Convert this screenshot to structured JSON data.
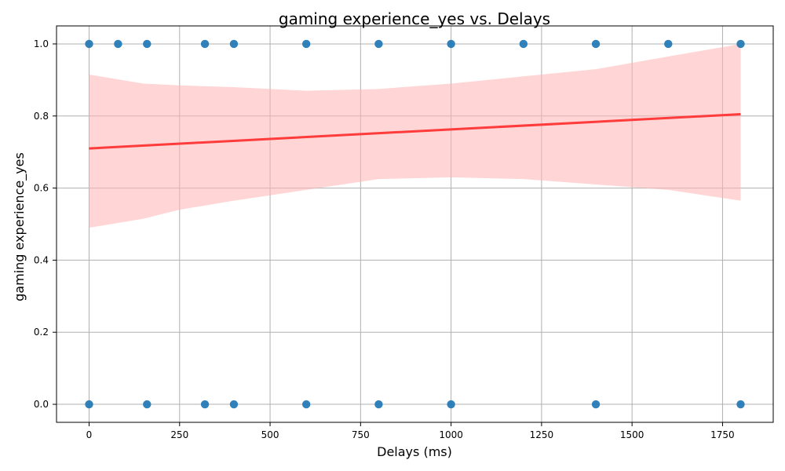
{
  "chart_data": {
    "type": "scatter",
    "title": "gaming experience_yes vs. Delays",
    "xlabel": "Delays (ms)",
    "ylabel": "gaming experience_yes",
    "xlim": [
      -90,
      1890
    ],
    "ylim": [
      -0.05,
      1.05
    ],
    "xticks": [
      0,
      250,
      500,
      750,
      1000,
      1250,
      1500,
      1750
    ],
    "yticks": [
      0.0,
      0.2,
      0.4,
      0.6,
      0.8,
      1.0
    ],
    "xtick_labels": [
      "0",
      "250",
      "500",
      "750",
      "1000",
      "1250",
      "1500",
      "1750"
    ],
    "ytick_labels": [
      "0.0",
      "0.2",
      "0.4",
      "0.6",
      "0.8",
      "1.0"
    ],
    "grid": true,
    "series": [
      {
        "kind": "points",
        "color": "#1f77b4",
        "points": [
          {
            "x": 0,
            "y": 1
          },
          {
            "x": 80,
            "y": 1
          },
          {
            "x": 160,
            "y": 1
          },
          {
            "x": 320,
            "y": 1
          },
          {
            "x": 400,
            "y": 1
          },
          {
            "x": 600,
            "y": 1
          },
          {
            "x": 800,
            "y": 1
          },
          {
            "x": 1000,
            "y": 1
          },
          {
            "x": 1200,
            "y": 1
          },
          {
            "x": 1400,
            "y": 1
          },
          {
            "x": 1600,
            "y": 1
          },
          {
            "x": 1800,
            "y": 1
          },
          {
            "x": 0,
            "y": 0
          },
          {
            "x": 160,
            "y": 0
          },
          {
            "x": 320,
            "y": 0
          },
          {
            "x": 400,
            "y": 0
          },
          {
            "x": 600,
            "y": 0
          },
          {
            "x": 800,
            "y": 0
          },
          {
            "x": 1000,
            "y": 0
          },
          {
            "x": 1400,
            "y": 0
          },
          {
            "x": 1800,
            "y": 0
          }
        ]
      },
      {
        "kind": "regression-line",
        "color": "#ff3b3b",
        "x": [
          0,
          1800
        ],
        "y": [
          0.71,
          0.805
        ]
      },
      {
        "kind": "confidence-band",
        "color": "#ffb3b3",
        "x": [
          0,
          150,
          250,
          400,
          600,
          800,
          1000,
          1200,
          1400,
          1600,
          1800
        ],
        "upper": [
          0.915,
          0.89,
          0.885,
          0.88,
          0.87,
          0.875,
          0.89,
          0.91,
          0.93,
          0.965,
          1.0
        ],
        "lower": [
          0.49,
          0.515,
          0.54,
          0.565,
          0.595,
          0.625,
          0.63,
          0.625,
          0.61,
          0.595,
          0.565
        ]
      }
    ]
  }
}
